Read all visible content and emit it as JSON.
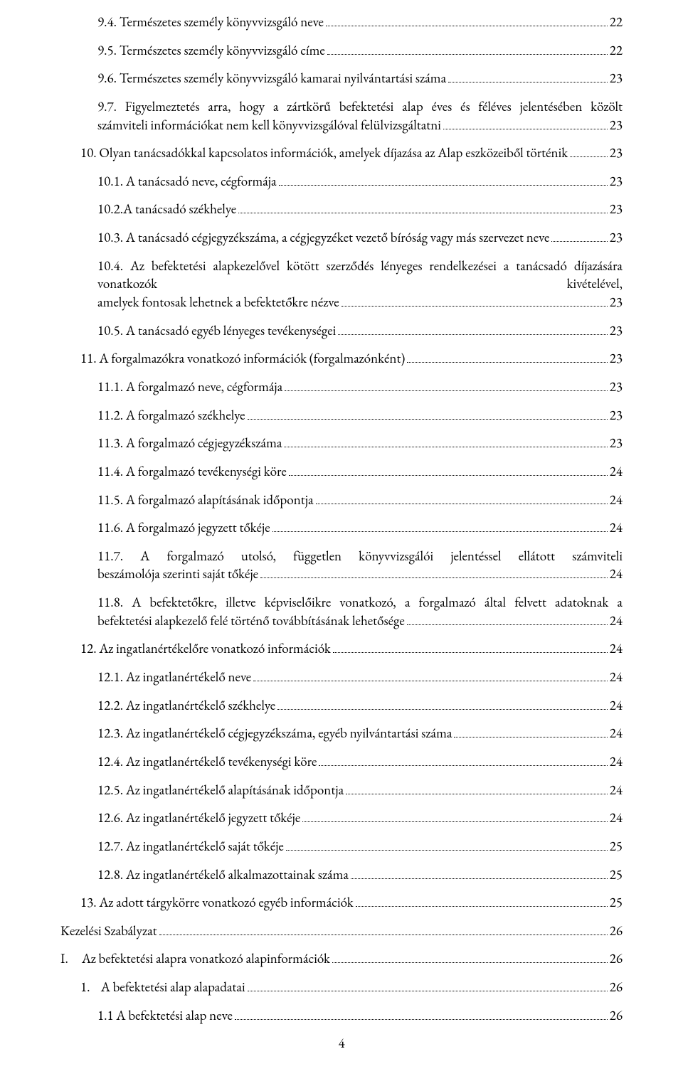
{
  "page_number": "4",
  "colors": {
    "text": "#000000",
    "background": "#ffffff",
    "leader": "#000000"
  },
  "typography": {
    "font_family": "Garamond, Georgia, serif",
    "font_size_pt": 14,
    "line_height": 1.35
  },
  "entries": [
    {
      "indent": 2,
      "label": "9.4. Természetes személy könyvvizsgáló neve",
      "page": "22"
    },
    {
      "indent": 2,
      "label": "9.5. Természetes személy könyvvizsgáló címe",
      "page": "22"
    },
    {
      "indent": 2,
      "label": "9.6. Természetes személy könyvvizsgáló kamarai nyilvántartási száma",
      "page": "23"
    },
    {
      "indent": 2,
      "label": "9.7. Figyelmeztetés arra, hogy a zártkörű befektetési alap éves és féléves jelentésében közölt számviteli információkat nem kell könyvvizsgálóval felülvizsgáltatni",
      "page": "23",
      "multi": true
    },
    {
      "indent": 1,
      "label": "10. Olyan tanácsadókkal kapcsolatos információk, amelyek díjazása az Alap eszközeiből történik",
      "page": "23"
    },
    {
      "indent": 2,
      "label": "10.1. A tanácsadó neve, cégformája",
      "page": "23"
    },
    {
      "indent": 2,
      "label": "10.2.A tanácsadó székhelye",
      "page": "23"
    },
    {
      "indent": 2,
      "label": "10.3. A tanácsadó cégjegyzékszáma, a cégjegyzéket vezető bíróság vagy más szervezet neve",
      "page": "23"
    },
    {
      "indent": 2,
      "label": "10.4. Az befektetési alapkezelővel kötött szerződés lényeges rendelkezései a tanácsadó díjazására vonatkozók kivételével, amelyek fontosak lehetnek a befektetőkre nézve",
      "page": "23",
      "multi": true
    },
    {
      "indent": 2,
      "label": "10.5. A tanácsadó egyéb lényeges tevékenységei",
      "page": "23"
    },
    {
      "indent": 1,
      "label": "11. A forgalmazókra vonatkozó információk (forgalmazónként)",
      "page": "23"
    },
    {
      "indent": 2,
      "label": "11.1. A forgalmazó neve, cégformája",
      "page": "23"
    },
    {
      "indent": 2,
      "label": "11.2. A forgalmazó székhelye",
      "page": "23"
    },
    {
      "indent": 2,
      "label": "11.3. A forgalmazó cégjegyzékszáma",
      "page": "23"
    },
    {
      "indent": 2,
      "label": "11.4. A forgalmazó tevékenységi köre",
      "page": "24"
    },
    {
      "indent": 2,
      "label": "11.5. A forgalmazó alapításának időpontja",
      "page": "24"
    },
    {
      "indent": 2,
      "label": "11.6. A forgalmazó jegyzett tőkéje",
      "page": "24"
    },
    {
      "indent": 2,
      "label": "11.7. A forgalmazó utolsó, független könyvvizsgálói jelentéssel ellátott számviteli beszámolója szerinti saját tőkéje",
      "page": "24",
      "multi": true
    },
    {
      "indent": 2,
      "label": "11.8. A befektetőkre, illetve képviselőikre vonatkozó, a forgalmazó által felvett adatoknak a befektetési alapkezelő felé történő továbbításának lehetősége",
      "page": "24",
      "multi": true
    },
    {
      "indent": 1,
      "label": "12. Az ingatlanértékelőre vonatkozó információk",
      "page": "24"
    },
    {
      "indent": 2,
      "label": "12.1. Az ingatlanértékelő neve",
      "page": "24"
    },
    {
      "indent": 2,
      "label": "12.2. Az ingatlanértékelő székhelye",
      "page": "24"
    },
    {
      "indent": 2,
      "label": "12.3. Az ingatlanértékelő cégjegyzékszáma, egyéb nyilvántartási száma",
      "page": "24"
    },
    {
      "indent": 2,
      "label": "12.4. Az ingatlanértékelő tevékenységi köre",
      "page": "24"
    },
    {
      "indent": 2,
      "label": "12.5. Az ingatlanértékelő alapításának időpontja",
      "page": "24"
    },
    {
      "indent": 2,
      "label": "12.6. Az ingatlanértékelő jegyzett tőkéje",
      "page": "24"
    },
    {
      "indent": 2,
      "label": "12.7. Az ingatlanértékelő saját tőkéje",
      "page": "25"
    },
    {
      "indent": 2,
      "label": "12.8. Az ingatlanértékelő alkalmazottainak száma",
      "page": "25"
    },
    {
      "indent": 1,
      "label": "13. Az adott tárgykörre vonatkozó egyéb információk",
      "page": "25"
    },
    {
      "indent": 0,
      "label": "Kezelési Szabályzat",
      "page": "26"
    },
    {
      "indent": 0,
      "label": "I.     Az befektetési alapra vonatkozó alapinformációk",
      "page": "26"
    },
    {
      "indent": 1,
      "label": "1.    A befektetési alap alapadatai",
      "page": "26"
    },
    {
      "indent": 2,
      "label": "1.1 A befektetési alap neve",
      "page": "26"
    }
  ]
}
